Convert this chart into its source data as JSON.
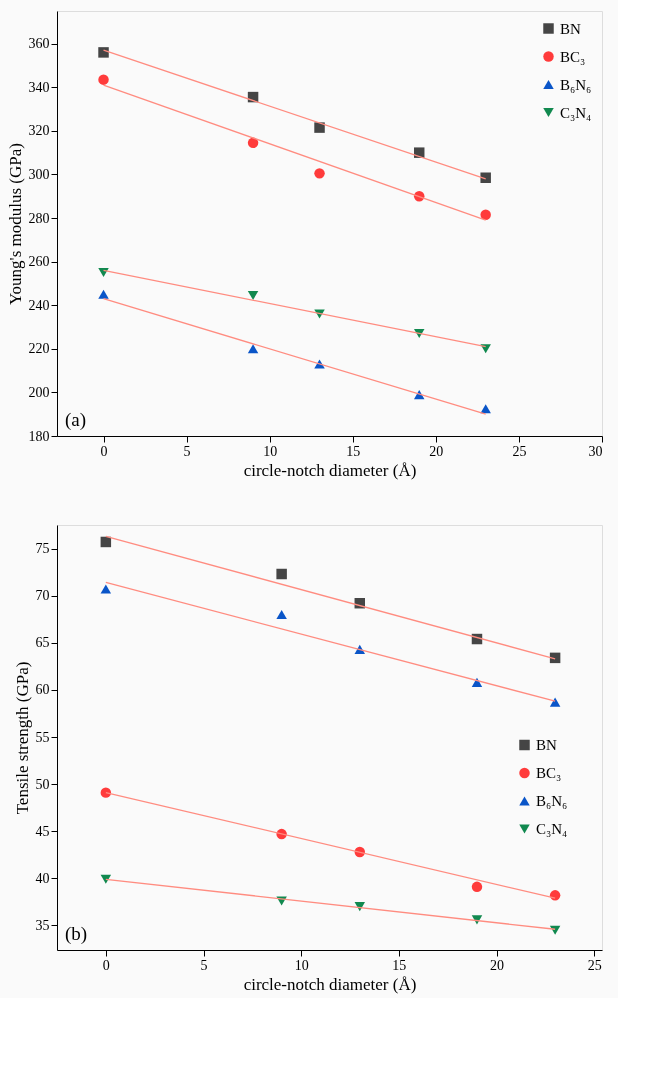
{
  "chart_data": [
    {
      "type": "scatter",
      "xlabel": "circle-notch diameter (Å)",
      "ylabel": "Young's modulus (GPa)",
      "xlim": [
        -2.8,
        30
      ],
      "ylim": [
        180,
        375
      ],
      "xticks": [
        0,
        5,
        10,
        15,
        20,
        25,
        30
      ],
      "yticks": [
        180,
        200,
        220,
        240,
        260,
        280,
        300,
        320,
        340,
        360
      ],
      "grid": false,
      "legend": "top right",
      "annotations": [
        "(a)"
      ],
      "series": [
        {
          "name": "BN",
          "color": "#454545",
          "marker": "square",
          "x": [
            0,
            9,
            13,
            19,
            23
          ],
          "values": [
            356,
            335.5,
            321.5,
            310,
            298.5
          ]
        },
        {
          "name": "BC₃",
          "color": "#ff3b3b",
          "marker": "circle",
          "x": [
            0,
            9,
            13,
            19,
            23
          ],
          "values": [
            343.5,
            314.5,
            300.5,
            290,
            281.5
          ]
        },
        {
          "name": "B₆N₆",
          "color": "#0a55c8",
          "marker": "triangle",
          "x": [
            0,
            9,
            13,
            19,
            23
          ],
          "values": [
            245,
            220,
            213,
            199,
            192.5
          ]
        },
        {
          "name": "C₃N₄",
          "color": "#11894f",
          "marker": "triangle-down",
          "x": [
            0,
            9,
            13,
            19,
            23
          ],
          "values": [
            255,
            244.5,
            236,
            227,
            220
          ]
        },
        {
          "type": "line",
          "color": "#ff8c80",
          "x": [
            0,
            23
          ],
          "values": [
            357,
            298
          ]
        },
        {
          "type": "line",
          "color": "#ff8c80",
          "x": [
            0,
            23
          ],
          "values": [
            341,
            279
          ]
        },
        {
          "type": "line",
          "color": "#ff8c80",
          "x": [
            0,
            23
          ],
          "values": [
            243,
            190
          ]
        },
        {
          "type": "line",
          "color": "#ff8c80",
          "x": [
            0,
            23
          ],
          "values": [
            256,
            221
          ]
        }
      ]
    },
    {
      "type": "scatter",
      "xlabel": "circle-notch diameter (Å)",
      "ylabel": "Tensile strength (GPa)",
      "xlim": [
        -2.5,
        25.4
      ],
      "ylim": [
        32.4,
        77.5
      ],
      "xticks": [
        0,
        5,
        10,
        15,
        20,
        25
      ],
      "yticks": [
        35,
        40,
        45,
        50,
        55,
        60,
        65,
        70,
        75
      ],
      "grid": false,
      "legend": "right",
      "annotations": [
        "(b)"
      ],
      "series": [
        {
          "name": "BN",
          "color": "#454545",
          "marker": "square",
          "x": [
            0,
            9,
            13,
            19,
            23
          ],
          "values": [
            75.7,
            72.3,
            69.2,
            65.4,
            63.4
          ]
        },
        {
          "name": "BC₃",
          "color": "#ff3b3b",
          "marker": "circle",
          "x": [
            0,
            9,
            13,
            19,
            23
          ],
          "values": [
            49.1,
            44.7,
            42.8,
            39.1,
            38.2
          ]
        },
        {
          "name": "B₆N₆",
          "color": "#0a55c8",
          "marker": "triangle",
          "x": [
            0,
            9,
            13,
            19,
            23
          ],
          "values": [
            70.7,
            68,
            64.3,
            60.8,
            58.7
          ]
        },
        {
          "name": "C₃N₄",
          "color": "#11894f",
          "marker": "triangle-down",
          "x": [
            0,
            9,
            13,
            19,
            23
          ],
          "values": [
            39.9,
            37.6,
            37.0,
            35.6,
            34.5
          ]
        },
        {
          "type": "line",
          "color": "#ff8c80",
          "x": [
            0,
            23
          ],
          "values": [
            76.3,
            63.3
          ]
        },
        {
          "type": "line",
          "color": "#ff8c80",
          "x": [
            0,
            23
          ],
          "values": [
            71.4,
            58.8
          ]
        },
        {
          "type": "line",
          "color": "#ff8c80",
          "x": [
            0,
            23
          ],
          "values": [
            49.1,
            37.9
          ]
        },
        {
          "type": "line",
          "color": "#ff8c80",
          "x": [
            0,
            23
          ],
          "values": [
            39.9,
            34.6
          ]
        }
      ]
    }
  ]
}
